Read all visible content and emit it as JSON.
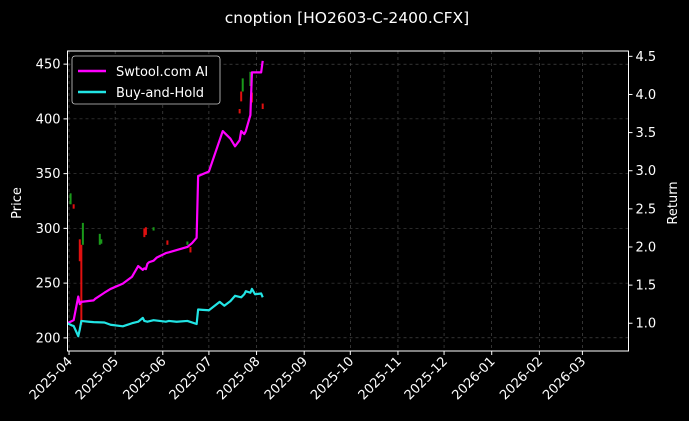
{
  "chart_data": {
    "type": "line",
    "title": "cnoption [HO2603-C-2400.CFX]",
    "ylabel_left": "Price",
    "ylabel_right": "Return",
    "xlim": [
      "2025-03-31",
      "2026-03-31"
    ],
    "ylim_left": [
      188,
      462
    ],
    "ylim_right": [
      0.636,
      4.57
    ],
    "x_ticks": [
      "2025-04",
      "2025-05",
      "2025-06",
      "2025-07",
      "2025-08",
      "2025-09",
      "2025-10",
      "2025-11",
      "2025-12",
      "2026-01",
      "2026-02",
      "2026-03"
    ],
    "y_ticks_left": [
      200,
      250,
      300,
      350,
      400,
      450
    ],
    "y_ticks_right": [
      "1.0",
      "1.5",
      "2.0",
      "2.5",
      "3.0",
      "3.5",
      "4.0",
      "4.5"
    ],
    "grid": true,
    "legend_position": "top-left",
    "series": [
      {
        "name": "Swtool.com AI",
        "color": "#ff00ff",
        "x": [
          "2025-03-31",
          "2025-04-04",
          "2025-04-07",
          "2025-04-08",
          "2025-04-09",
          "2025-04-17",
          "2025-04-18",
          "2025-04-24",
          "2025-04-28",
          "2025-05-06",
          "2025-05-12",
          "2025-05-16",
          "2025-05-19",
          "2025-05-20",
          "2025-05-21",
          "2025-05-22",
          "2025-05-23",
          "2025-05-26",
          "2025-05-27",
          "2025-05-28",
          "2025-05-30",
          "2025-06-03",
          "2025-06-05",
          "2025-06-10",
          "2025-06-17",
          "2025-06-20",
          "2025-06-23",
          "2025-06-24",
          "2025-07-01",
          "2025-07-10",
          "2025-07-15",
          "2025-07-18",
          "2025-07-21",
          "2025-07-22",
          "2025-07-24",
          "2025-07-25",
          "2025-07-28",
          "2025-07-29",
          "2025-07-31",
          "2025-08-04",
          "2025-08-05"
        ],
        "values": [
          1.0,
          1.04,
          1.35,
          1.25,
          1.28,
          1.3,
          1.32,
          1.4,
          1.45,
          1.52,
          1.61,
          1.75,
          1.7,
          1.72,
          1.71,
          1.78,
          1.8,
          1.82,
          1.84,
          1.86,
          1.88,
          1.92,
          1.93,
          1.96,
          2.0,
          2.05,
          2.12,
          2.93,
          2.99,
          3.52,
          3.42,
          3.32,
          3.4,
          3.52,
          3.48,
          3.52,
          3.73,
          4.29,
          4.29,
          4.29,
          4.44
        ]
      },
      {
        "name": "Buy-and-Hold",
        "color": "#22e5e5",
        "x": [
          "2025-03-31",
          "2025-04-03",
          "2025-04-04",
          "2025-04-07",
          "2025-04-08",
          "2025-04-09",
          "2025-04-14",
          "2025-04-17",
          "2025-04-24",
          "2025-04-28",
          "2025-05-06",
          "2025-05-12",
          "2025-05-16",
          "2025-05-19",
          "2025-05-20",
          "2025-05-22",
          "2025-05-26",
          "2025-05-30",
          "2025-06-03",
          "2025-06-05",
          "2025-06-10",
          "2025-06-17",
          "2025-06-20",
          "2025-06-23",
          "2025-06-24",
          "2025-06-27",
          "2025-07-01",
          "2025-07-08",
          "2025-07-11",
          "2025-07-15",
          "2025-07-18",
          "2025-07-22",
          "2025-07-24",
          "2025-07-25",
          "2025-07-28",
          "2025-07-29",
          "2025-07-31",
          "2025-08-04",
          "2025-08-05"
        ],
        "values": [
          1.0,
          0.97,
          0.965,
          0.83,
          0.92,
          1.03,
          1.02,
          1.015,
          1.01,
          0.98,
          0.96,
          1.0,
          1.02,
          1.07,
          1.03,
          1.02,
          1.04,
          1.03,
          1.02,
          1.03,
          1.02,
          1.03,
          1.01,
          0.99,
          1.18,
          1.175,
          1.17,
          1.28,
          1.23,
          1.29,
          1.36,
          1.34,
          1.38,
          1.42,
          1.4,
          1.45,
          1.38,
          1.39,
          1.34
        ]
      }
    ],
    "candles": [
      {
        "x": "2025-04-02",
        "low": 322,
        "high": 332,
        "dir": "up"
      },
      {
        "x": "2025-04-04",
        "low": 318,
        "high": 322,
        "dir": "down"
      },
      {
        "x": "2025-04-08",
        "low": 270,
        "high": 290,
        "dir": "down"
      },
      {
        "x": "2025-04-09",
        "low": 212,
        "high": 285,
        "dir": "down"
      },
      {
        "x": "2025-04-10",
        "low": 285,
        "high": 305,
        "dir": "up"
      },
      {
        "x": "2025-04-21",
        "low": 285,
        "high": 295,
        "dir": "up"
      },
      {
        "x": "2025-04-22",
        "low": 286,
        "high": 290,
        "dir": "up"
      },
      {
        "x": "2025-05-20",
        "low": 292,
        "high": 300,
        "dir": "down"
      },
      {
        "x": "2025-05-21",
        "low": 294,
        "high": 301,
        "dir": "down"
      },
      {
        "x": "2025-05-26",
        "low": 298,
        "high": 301,
        "dir": "up"
      },
      {
        "x": "2025-06-04",
        "low": 285,
        "high": 289,
        "dir": "down"
      },
      {
        "x": "2025-06-17",
        "low": 285,
        "high": 288,
        "dir": "up"
      },
      {
        "x": "2025-06-19",
        "low": 278,
        "high": 283,
        "dir": "down"
      },
      {
        "x": "2025-07-21",
        "low": 405,
        "high": 409,
        "dir": "down"
      },
      {
        "x": "2025-07-22",
        "low": 416,
        "high": 425,
        "dir": "down"
      },
      {
        "x": "2025-07-23",
        "low": 425,
        "high": 437,
        "dir": "up"
      },
      {
        "x": "2025-07-28",
        "low": 430,
        "high": 443,
        "dir": "up"
      },
      {
        "x": "2025-07-29",
        "low": 415,
        "high": 424,
        "dir": "down"
      },
      {
        "x": "2025-08-05",
        "low": 409,
        "high": 414,
        "dir": "down"
      }
    ]
  }
}
